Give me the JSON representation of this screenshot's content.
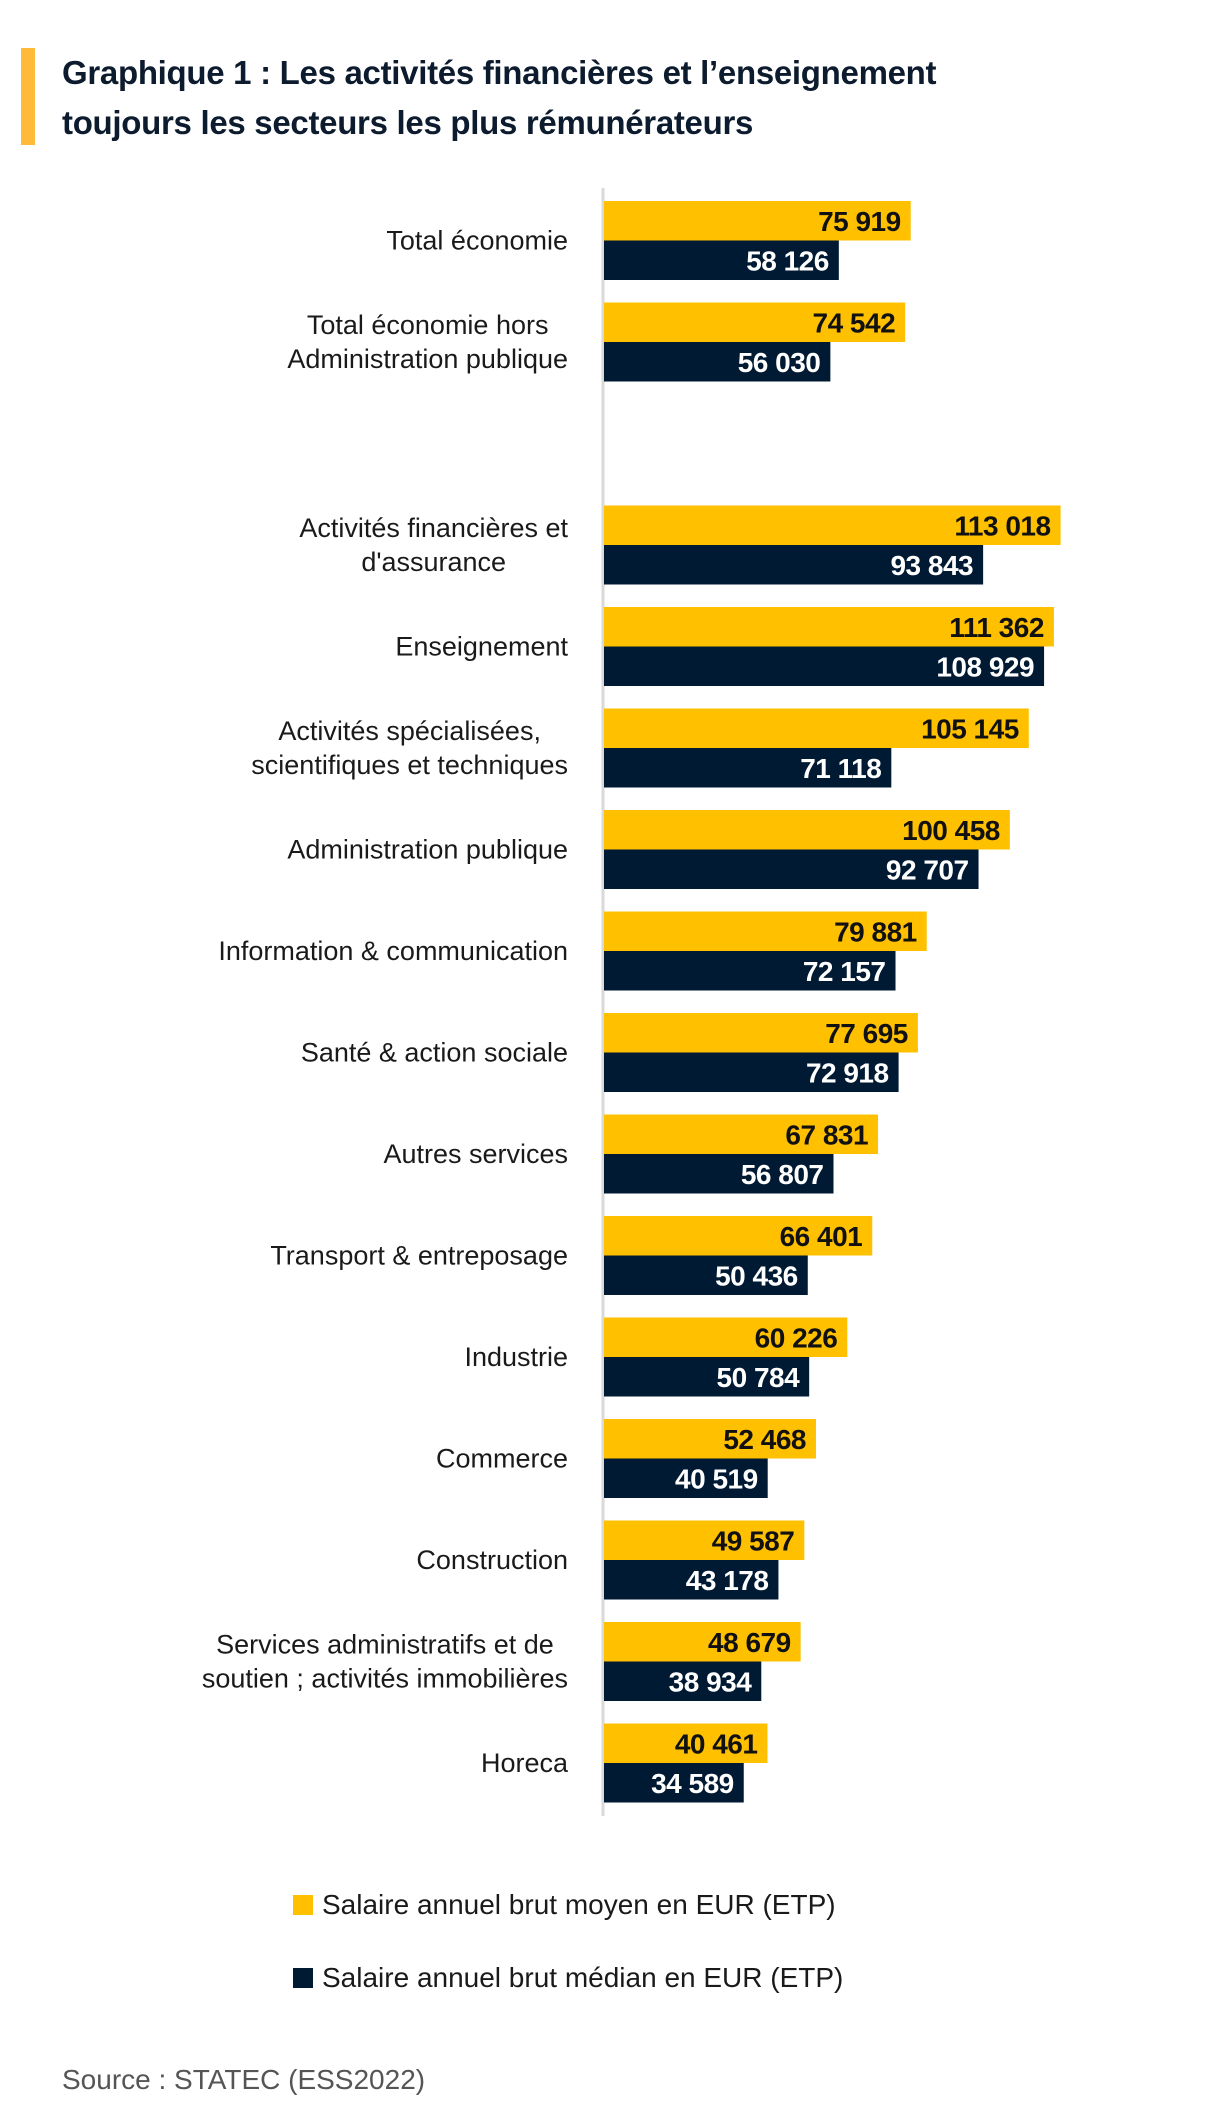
{
  "title": {
    "line1": "Graphique 1 : Les activités financières et l’enseignement",
    "line2": "toujours les secteurs les plus rémunérateurs"
  },
  "colors": {
    "accent": "#FFBA3A",
    "mean": "#FFC000",
    "median": "#001A33",
    "axis": "#D9D9D9"
  },
  "legend": {
    "items": [
      {
        "label": "Salaire annuel brut moyen en EUR (ETP)",
        "color": "#FFC000"
      },
      {
        "label": "Salaire annuel brut médian en EUR (ETP)",
        "color": "#001A33"
      }
    ]
  },
  "source": "Source : STATEC (ESS2022)",
  "chart_data": {
    "type": "bar",
    "orientation": "horizontal",
    "title": "Graphique 1 : Les activités financières et l’enseignement toujours les secteurs les plus rémunérateurs",
    "xlabel": "",
    "ylabel": "",
    "grid": false,
    "legend_position": "bottom",
    "xlim": [
      0,
      120000
    ],
    "categories": [
      [
        "Total économie"
      ],
      [
        "Total économie hors",
        "Administration publique"
      ],
      [
        "Activités financières et",
        "d'assurance"
      ],
      [
        "Enseignement"
      ],
      [
        "Activités spécialisées,",
        "scientifiques et techniques"
      ],
      [
        "Administration publique"
      ],
      [
        "Information & communication"
      ],
      [
        "Santé & action sociale"
      ],
      [
        "Autres services"
      ],
      [
        "Transport & entreposage"
      ],
      [
        "Industrie"
      ],
      [
        "Commerce"
      ],
      [
        "Construction"
      ],
      [
        "Services administratifs et de",
        "soutien ; activités immobilières"
      ],
      [
        "Horeca"
      ]
    ],
    "group_gap_after": [
      1
    ],
    "series": [
      {
        "name": "Salaire annuel brut moyen en EUR (ETP)",
        "values": [
          75919,
          74542,
          113018,
          111362,
          105145,
          100458,
          79881,
          77695,
          67831,
          66401,
          60226,
          52468,
          49587,
          48679,
          40461
        ],
        "labels": [
          "75 919",
          "74 542",
          "113 018",
          "111 362",
          "105 145",
          "100 458",
          "79 881",
          "77 695",
          "67 831",
          "66 401",
          "60 226",
          "52 468",
          "49 587",
          "48 679",
          "40 461"
        ]
      },
      {
        "name": "Salaire annuel brut médian en EUR (ETP)",
        "values": [
          58126,
          56030,
          93843,
          108929,
          71118,
          92707,
          72157,
          72918,
          56807,
          50436,
          50784,
          40519,
          43178,
          38934,
          34589
        ],
        "labels": [
          "58 126",
          "56 030",
          "93 843",
          "108 929",
          "71 118",
          "92 707",
          "72 157",
          "72 918",
          "56 807",
          "50 436",
          "50 784",
          "40 519",
          "43 178",
          "38 934",
          "34 589"
        ]
      }
    ]
  }
}
